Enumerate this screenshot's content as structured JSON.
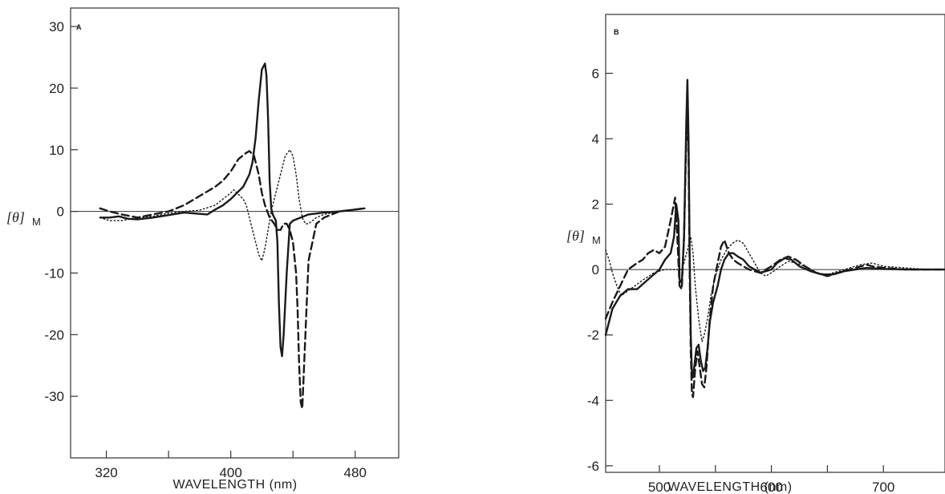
{
  "chart_data": [
    {
      "type": "line",
      "panel_label": "A",
      "xlabel": "WAVELENGTH (nm)",
      "ylabel": "[θ]",
      "ylabel_sub": "M",
      "xlim": [
        297,
        508
      ],
      "ylim": [
        -40,
        33
      ],
      "x_ticks": [
        320,
        360,
        400,
        440,
        480
      ],
      "x_tick_labels": [
        "320",
        "",
        "400",
        "",
        "480"
      ],
      "y_ticks": [
        -30,
        -20,
        -10,
        0,
        10,
        20,
        30
      ],
      "y_tick_labels": [
        "-30",
        "-20",
        "-10",
        "0",
        "10",
        "20",
        "30"
      ],
      "zero_line": true,
      "series": [
        {
          "style": "solid",
          "x": [
            316,
            322,
            328,
            334,
            340,
            350,
            360,
            370,
            380,
            385,
            390,
            395,
            400,
            404,
            406,
            408,
            410,
            412,
            414,
            416,
            418,
            420,
            422,
            423,
            424,
            425,
            426,
            427,
            428,
            429,
            430,
            431,
            432,
            433,
            434,
            436,
            438,
            440,
            445,
            450,
            460,
            470,
            480,
            486
          ],
          "y": [
            -1,
            -1,
            -0.8,
            -1.2,
            -1.3,
            -1,
            -0.6,
            -0.2,
            -0.4,
            -0.5,
            0.3,
            1,
            2,
            3,
            3.5,
            4,
            5,
            6,
            8,
            12,
            18,
            23,
            24,
            22,
            15,
            5,
            0.5,
            -0.5,
            -1,
            -1.5,
            -5,
            -15,
            -22,
            -23.5,
            -20,
            -10,
            -2,
            -1.5,
            -1,
            -0.5,
            -0.2,
            0,
            0.3,
            0.5
          ]
        },
        {
          "style": "dashed",
          "x": [
            316,
            322,
            330,
            340,
            350,
            360,
            370,
            380,
            390,
            395,
            400,
            405,
            410,
            412,
            415,
            418,
            420,
            422,
            425,
            428,
            430,
            432,
            434,
            436,
            438,
            440,
            442,
            443,
            444,
            445,
            446,
            448,
            450,
            455,
            460,
            465,
            470,
            480,
            486
          ],
          "y": [
            0.5,
            0,
            -0.5,
            -1,
            -0.5,
            0,
            1,
            2.5,
            4,
            5,
            6.5,
            8.5,
            9.5,
            9.8,
            9,
            6,
            3,
            1,
            -1,
            -2,
            -3,
            -3,
            -2,
            -2,
            -3,
            -5,
            -10,
            -16,
            -25,
            -31,
            -32,
            -20,
            -8,
            -2,
            -1,
            -0.5,
            0,
            0.3,
            0.5
          ]
        },
        {
          "style": "dotted",
          "x": [
            316,
            322,
            330,
            340,
            350,
            360,
            370,
            380,
            390,
            395,
            400,
            402,
            404,
            406,
            408,
            410,
            412,
            415,
            417,
            418,
            420,
            422,
            424,
            426,
            428,
            430,
            432,
            435,
            438,
            440,
            442,
            444,
            446,
            448,
            450,
            455,
            460,
            470,
            480,
            486
          ],
          "y": [
            -1,
            -1.5,
            -1.5,
            -1,
            -0.8,
            -0.3,
            0,
            0.2,
            1,
            2,
            3,
            3.5,
            3,
            2.5,
            2,
            1,
            -1,
            -4,
            -6,
            -7,
            -8,
            -6,
            -3,
            0,
            2,
            4,
            6,
            9,
            10,
            9,
            6,
            2,
            -1,
            -2,
            -2,
            -1,
            -0.5,
            0,
            0.3,
            0.5
          ]
        }
      ]
    },
    {
      "type": "line",
      "panel_label": "B",
      "xlabel": "WAVELENGTH (nm)",
      "ylabel": "[θ]",
      "ylabel_sub": "M",
      "xlim": [
        452,
        755
      ],
      "ylim": [
        -6.2,
        7.8
      ],
      "x_ticks": [
        500,
        550,
        600,
        650,
        700
      ],
      "x_tick_labels": [
        "500",
        "",
        "600",
        "",
        "700"
      ],
      "y_ticks": [
        -6,
        -4,
        -2,
        0,
        2,
        4,
        6
      ],
      "y_tick_labels": [
        "-6",
        "-4",
        "-2",
        "0",
        "2",
        "4",
        "6"
      ],
      "zero_line": true,
      "series": [
        {
          "style": "solid",
          "x": [
            452,
            458,
            465,
            472,
            480,
            490,
            500,
            505,
            510,
            513,
            515,
            517,
            518,
            520,
            522,
            524,
            525,
            526,
            527,
            528,
            529,
            530,
            531,
            533,
            535,
            537,
            539,
            541,
            543,
            545,
            548,
            552,
            555,
            558,
            562,
            566,
            570,
            575,
            580,
            590,
            600,
            605,
            612,
            618,
            625,
            635,
            645,
            655,
            665,
            675,
            685,
            700,
            720,
            740,
            755
          ],
          "y": [
            -2,
            -1.2,
            -0.8,
            -0.6,
            -0.6,
            -0.3,
            0,
            0.3,
            0.5,
            1,
            2,
            1.5,
            -0.3,
            -0.4,
            1,
            4.5,
            5.8,
            4,
            0.5,
            -2,
            -3.2,
            -3.3,
            -3,
            -2.4,
            -2.3,
            -2.8,
            -3.1,
            -3,
            -2.4,
            -1.6,
            -1,
            -0.5,
            0,
            0.3,
            0.5,
            0.5,
            0.4,
            0.3,
            0.1,
            -0.1,
            0,
            0.2,
            0.35,
            0.3,
            0.1,
            -0.05,
            -0.15,
            -0.15,
            -0.05,
            0,
            0.05,
            0.02,
            0,
            0,
            0
          ]
        },
        {
          "style": "dashed",
          "x": [
            452,
            458,
            465,
            472,
            480,
            485,
            490,
            495,
            500,
            505,
            510,
            514,
            516,
            518,
            520,
            522,
            524,
            525,
            526,
            527,
            528,
            529,
            530,
            532,
            534,
            536,
            538,
            540,
            542,
            545,
            548,
            552,
            555,
            558,
            562,
            566,
            570,
            575,
            580,
            590,
            600,
            608,
            615,
            622,
            630,
            640,
            650,
            660,
            670,
            680,
            685,
            690,
            700,
            720,
            740,
            755
          ],
          "y": [
            -1.5,
            -1,
            -0.5,
            0,
            0.2,
            0.3,
            0.5,
            0.6,
            0.5,
            0.7,
            1.5,
            2.2,
            1,
            -0.5,
            -0.6,
            1,
            4,
            5.2,
            3.5,
            0,
            -2.5,
            -3.8,
            -3.9,
            -3,
            -2.5,
            -3,
            -3.5,
            -3.6,
            -3,
            -1.5,
            -0.5,
            0.2,
            0.7,
            0.9,
            0.5,
            0.3,
            0.2,
            0.1,
            0,
            -0.1,
            0.1,
            0.3,
            0.4,
            0.3,
            0.1,
            -0.1,
            -0.2,
            -0.1,
            0,
            0.1,
            0.15,
            0.1,
            0.05,
            0,
            0,
            0
          ]
        },
        {
          "style": "dotted",
          "x": [
            452,
            455,
            458,
            462,
            466,
            470,
            478,
            486,
            495,
            505,
            512,
            516,
            520,
            522,
            525,
            528,
            530,
            532,
            535,
            538,
            540,
            543,
            546,
            550,
            555,
            560,
            565,
            570,
            575,
            580,
            585,
            590,
            595,
            600,
            608,
            615,
            622,
            630,
            640,
            650,
            660,
            670,
            680,
            690,
            700,
            720,
            740,
            755
          ],
          "y": [
            0.6,
            0.3,
            -0.1,
            -0.5,
            -0.8,
            -0.7,
            -0.5,
            -0.3,
            -0.1,
            0,
            0,
            0,
            0,
            0.2,
            0.6,
            1,
            0.5,
            -0.5,
            -1.5,
            -2.2,
            -2,
            -1.5,
            -0.8,
            -0.2,
            0.3,
            0.6,
            0.8,
            0.9,
            0.8,
            0.5,
            0.2,
            -0.1,
            -0.2,
            -0.1,
            0.1,
            0.25,
            0.2,
            0.1,
            -0.1,
            -0.15,
            -0.05,
            0.05,
            0.15,
            0.2,
            0.1,
            0.05,
            0,
            0
          ]
        }
      ]
    }
  ]
}
